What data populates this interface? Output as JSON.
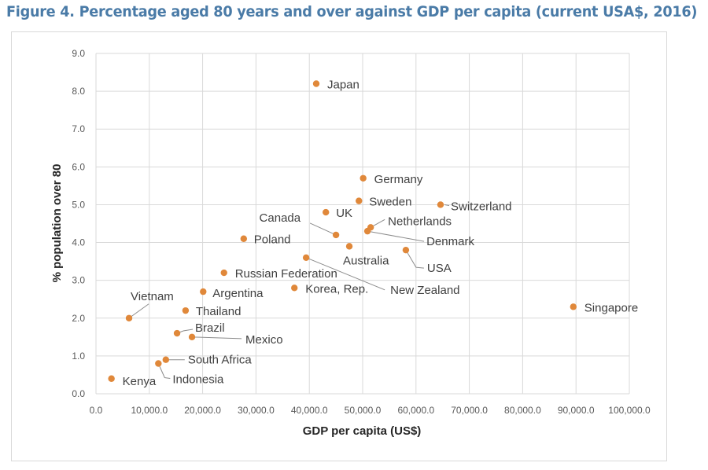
{
  "chart_data": {
    "type": "scatter",
    "title": "Figure 4. Percentage aged 80 years and over against GDP per capita (current USA$, 2016)",
    "xlabel": "GDP per capita (US$)",
    "ylabel": "% population over 80",
    "xlim": [
      0,
      100000
    ],
    "ylim": [
      0,
      9
    ],
    "xticks": [
      "0.0",
      "10,000.0",
      "20,000.0",
      "30,000.0",
      "40,000.0",
      "50,000.0",
      "60,000.0",
      "70,000.0",
      "80,000.0",
      "90,000.0",
      "100,000.0"
    ],
    "yticks": [
      "0.0",
      "1.0",
      "2.0",
      "3.0",
      "4.0",
      "5.0",
      "6.0",
      "7.0",
      "8.0",
      "9.0"
    ],
    "grid": true,
    "marker_color": "#e0883a",
    "points": [
      {
        "label": "Japan",
        "x": 41300,
        "y": 8.2
      },
      {
        "label": "Germany",
        "x": 50100,
        "y": 5.7
      },
      {
        "label": "Sweden",
        "x": 49300,
        "y": 5.1
      },
      {
        "label": "Switzerland",
        "x": 64600,
        "y": 5.0
      },
      {
        "label": "UK",
        "x": 43100,
        "y": 4.8
      },
      {
        "label": "Canada",
        "x": 45000,
        "y": 4.2
      },
      {
        "label": "Netherlands",
        "x": 51500,
        "y": 4.4
      },
      {
        "label": "Denmark",
        "x": 50900,
        "y": 4.3
      },
      {
        "label": "Poland",
        "x": 27700,
        "y": 4.1
      },
      {
        "label": "Australia",
        "x": 47500,
        "y": 3.9
      },
      {
        "label": "USA",
        "x": 58100,
        "y": 3.8
      },
      {
        "label": "New Zealand",
        "x": 39400,
        "y": 3.6
      },
      {
        "label": "Russian Federation",
        "x": 24000,
        "y": 3.2
      },
      {
        "label": "Korea, Rep.",
        "x": 37200,
        "y": 2.8
      },
      {
        "label": "Argentina",
        "x": 20100,
        "y": 2.7
      },
      {
        "label": "Thailand",
        "x": 16800,
        "y": 2.2
      },
      {
        "label": "Vietnam",
        "x": 6200,
        "y": 2.0
      },
      {
        "label": "Singapore",
        "x": 89500,
        "y": 2.3
      },
      {
        "label": "Brazil",
        "x": 15200,
        "y": 1.6
      },
      {
        "label": "Mexico",
        "x": 18000,
        "y": 1.5
      },
      {
        "label": "South Africa",
        "x": 13100,
        "y": 0.9
      },
      {
        "label": "Indonesia",
        "x": 11700,
        "y": 0.8
      },
      {
        "label": "Kenya",
        "x": 2900,
        "y": 0.4
      }
    ]
  }
}
